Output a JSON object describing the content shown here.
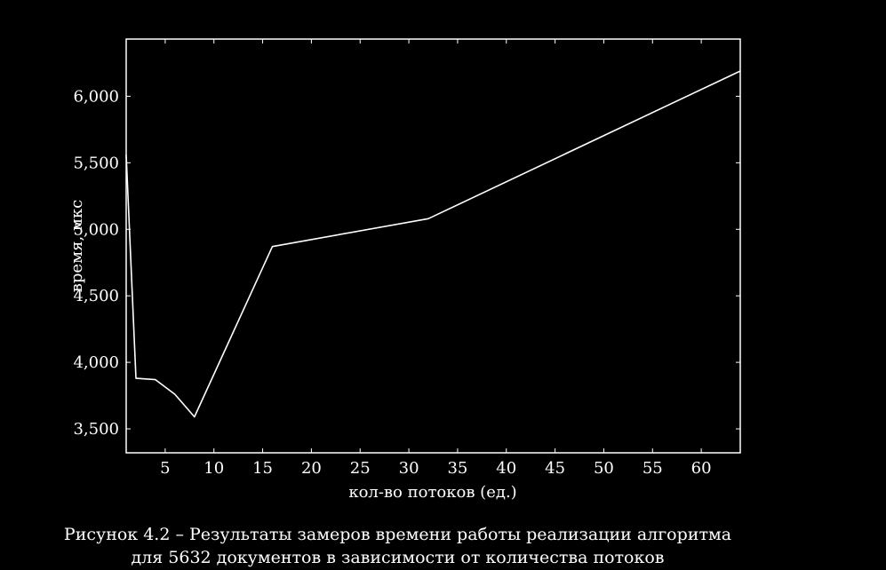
{
  "chart_data": {
    "type": "line",
    "xlabel": "кол-во потоков (ед.)",
    "ylabel": "время, мкс",
    "xlim": [
      1,
      64
    ],
    "ylim": [
      3320,
      6430
    ],
    "xticks": [
      5,
      10,
      15,
      20,
      25,
      30,
      35,
      40,
      45,
      50,
      55,
      60
    ],
    "xtick_labels": [
      "5",
      "10",
      "15",
      "20",
      "25",
      "30",
      "35",
      "40",
      "45",
      "50",
      "55",
      "60"
    ],
    "yticks": [
      3500,
      4000,
      4500,
      5000,
      5500,
      6000
    ],
    "ytick_labels": [
      "3,500",
      "4,000",
      "4,500",
      "5,000",
      "5,500",
      "6,000"
    ],
    "grid": false,
    "series": [
      {
        "x": [
          1,
          2,
          4,
          6,
          8,
          16,
          32,
          64
        ],
        "y": [
          5560,
          3880,
          3870,
          3760,
          3590,
          4870,
          5080,
          6190
        ]
      }
    ]
  },
  "caption": {
    "line1": "Рисунок 4.2 – Результаты замеров времени работы реализации алгоритма",
    "line2": "для 5632 документов в зависимости от количества потоков"
  },
  "colors": {
    "background": "#000000",
    "foreground": "#ffffff"
  }
}
